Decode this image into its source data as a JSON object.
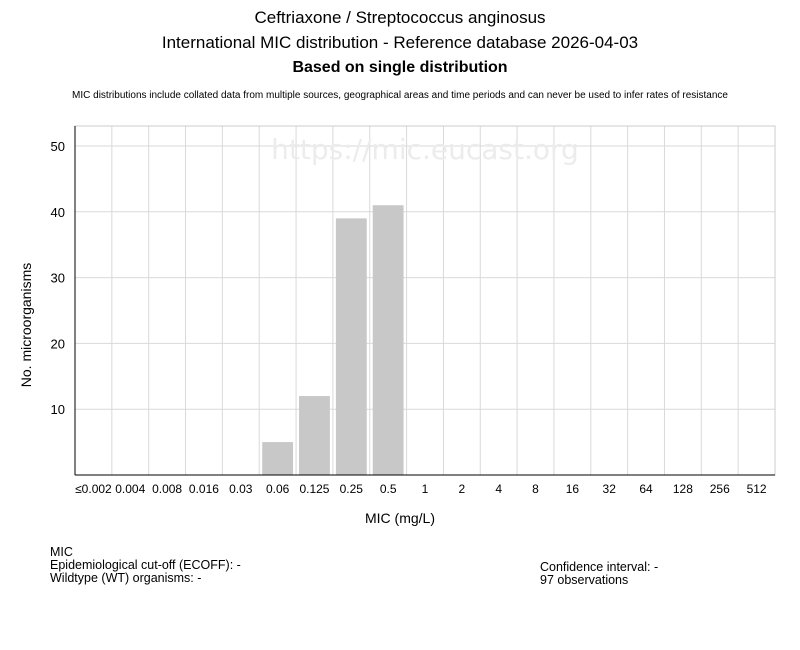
{
  "header": {
    "title": "Ceftriaxone / Streptococcus anginosus",
    "subtitle": "International MIC distribution - Reference database 2026-04-03",
    "distribution_note": "Based on single distribution",
    "disclaimer": "MIC distributions include collated data from multiple sources, geographical areas and time periods and can never be used to infer rates of resistance"
  },
  "chart_data": {
    "type": "bar",
    "watermark": "https://mic.eucast.org",
    "xlabel": "MIC (mg/L)",
    "ylabel": "No. microorganisms",
    "categories": [
      "≤0.002",
      "0.004",
      "0.008",
      "0.016",
      "0.03",
      "0.06",
      "0.125",
      "0.25",
      "0.5",
      "1",
      "2",
      "4",
      "8",
      "16",
      "32",
      "64",
      "128",
      "256",
      "512"
    ],
    "values": [
      0,
      0,
      0,
      0,
      0,
      5,
      12,
      39,
      41,
      0,
      0,
      0,
      0,
      0,
      0,
      0,
      0,
      0,
      0
    ],
    "y_ticks": [
      10,
      20,
      30,
      40,
      50
    ],
    "ylim": [
      0,
      53
    ],
    "grid": true,
    "bar_color": "#c8c8c8",
    "grid_color": "#d9d9d9"
  },
  "info": {
    "left": {
      "heading": "MIC",
      "ecoff": "Epidemiological cut-off (ECOFF): -",
      "wt": "Wildtype (WT) organisms:  -"
    },
    "right": {
      "ci": "Confidence interval: -",
      "observations": "97 observations"
    }
  }
}
